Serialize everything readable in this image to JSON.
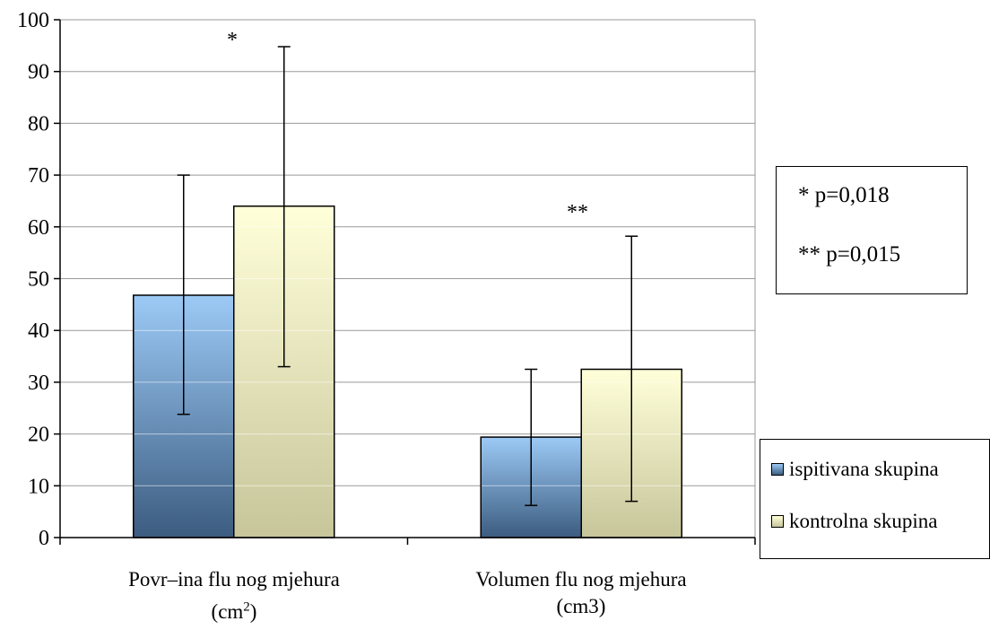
{
  "chart_data": {
    "type": "bar",
    "categories": [
      "Povr–ina flu nog mjehura (cm²)",
      "Volumen flu nog mjehura (cm3)"
    ],
    "category_label_lines": [
      [
        "Povr–ina flu nog mjehura",
        "(cm",
        "2",
        ")"
      ],
      [
        "Volumen flu nog mjehura",
        "(cm3)"
      ]
    ],
    "series": [
      {
        "name": "ispitivana skupina",
        "values": [
          46.8,
          19.4
        ],
        "error_low": [
          23.8,
          6.2
        ],
        "error_high": [
          70.0,
          32.5
        ],
        "color_top": "#9ccaf6",
        "color_bottom": "#3c5c80"
      },
      {
        "name": "kontrolna skupina",
        "values": [
          64.0,
          32.5
        ],
        "error_low": [
          33.0,
          7.0
        ],
        "error_high": [
          94.8,
          58.2
        ],
        "color_top": "#ffffd9",
        "color_bottom": "#c7c59a"
      }
    ],
    "ylim": [
      0,
      100
    ],
    "yticks": [
      "0",
      "10",
      "20",
      "30",
      "40",
      "50",
      "60",
      "70",
      "80",
      "90",
      "100"
    ],
    "grid": true,
    "legend_position": "bottom-right",
    "annotations": [
      {
        "text": "*",
        "category": 0
      },
      {
        "text": "**",
        "category": 1
      }
    ],
    "significance_notes": [
      "* p=0,018",
      "** p=0,015"
    ]
  }
}
